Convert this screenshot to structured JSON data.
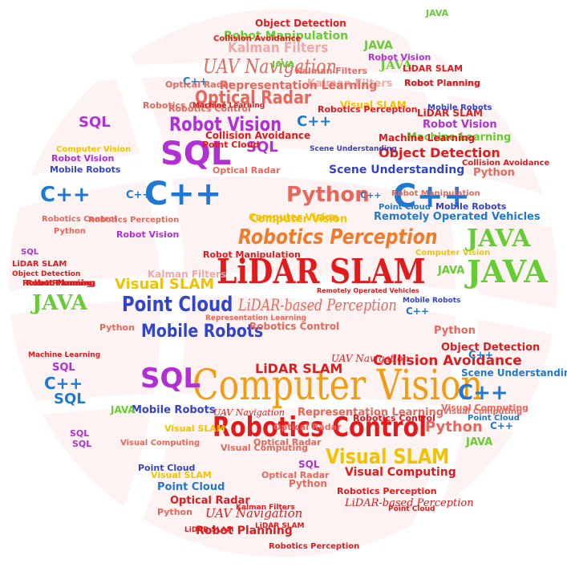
{
  "colors": {
    "background": "#ffffff",
    "globe_tint": "#fbeeee",
    "red": "#e31a1c",
    "orange": "#f39c12",
    "green": "#66cc33",
    "blue": "#1f78d4",
    "purple": "#b22fd6",
    "navy": "#3344cc",
    "pink": "#f4a6a6",
    "salmon": "#e8665a",
    "yellow": "#f2c200",
    "darkred": "#c0302a"
  },
  "words": {
    "w001": "Computer Vision",
    "w002": "LiDAR SLAM",
    "w003": "Robotics Control",
    "w004": "Robotics Perception",
    "w005": "Point Cloud",
    "w006": "JAVA",
    "w007": "JAVA",
    "w008": "C++",
    "w009": "C++",
    "w010": "SQL",
    "w011": "SQL",
    "w012": "Mobile Robots",
    "w013": "Visual SLAM",
    "w014": "Robot Vision",
    "w015": "Optical Radar",
    "w016": "UAV Navigation",
    "w017": "Kalman Filters",
    "w018": "Python",
    "w019": "Scene Understanding",
    "w020": "Object Detection",
    "w021": "Collision Avoidance",
    "w022": "LiDAR-based Perception",
    "w023": "Visual SLAM",
    "w024": "JAVA",
    "w025": "C++",
    "w026": "Python",
    "w027": "Remotely Operated Vehicles",
    "w028": "Machine Learning",
    "w029": "Robot Vision",
    "w030": "LiDAR SLAM",
    "w031": "Mobile Robots",
    "w032": "SQL",
    "w033": "C++",
    "w034": "C++",
    "w035": "C++",
    "w036": "SQL",
    "w037": "SQL",
    "w038": "Object Detection",
    "w039": "Robot Manipulation",
    "w040": "Kalman Filters",
    "w041": "UAV Navigation",
    "w042": "Optical Radar",
    "w043": "LiDAR SLAM",
    "w044": "Visual Computing",
    "w045": "Robotics Perception",
    "w046": "Point Cloud",
    "w047": "Robot Planning",
    "w048": "Representation Learning",
    "w049": "Robotics Control",
    "w050": "Computer Vision",
    "w051": "Mobile Robots",
    "w052": "Robotics Control",
    "w053": "Python",
    "w054": "Point Cloud",
    "w055": "Optical Radar",
    "w056": "JAVA",
    "w057": "Computer Vision",
    "w058": "Scene Understanding",
    "w059": "Collision Avoidance",
    "w060": "Robot Vision",
    "w061": "Mobile Robots",
    "w062": "Robotics Control",
    "w063": "Python",
    "w064": "LiDAR SLAM",
    "w065": "Object Detection",
    "w066": "Machine Learning",
    "w067": "Robot Planning",
    "w068": "Robot Manipulation",
    "w069": "Kalman Filters",
    "w070": "Representation Learning",
    "w071": "Optical Radar",
    "w072": "Remotely Operated Vehicles",
    "w073": "Point Cloud",
    "w074": "Visual SLAM",
    "w075": "LiDAR SLAM",
    "w076": "Robot Planning",
    "w077": "Robotics Perception",
    "w078": "Visual Computing",
    "w079": "Python",
    "w080": "JAVA",
    "w081": "C++",
    "w082": "SQL",
    "w083": "SQL",
    "w084": "C++",
    "w085": "C++",
    "w086": "JAVA",
    "w087": "JAVA",
    "w088": "Python",
    "w089": "Visual Computing",
    "w090": "Visual SLAM",
    "w091": "Point Cloud",
    "w092": "UAV Navigation",
    "w093": "Optical Radar",
    "w094": "Robot Planning",
    "w095": "Robotics Perception",
    "w096": "LiDAR-based Perception",
    "w097": "Mobile Robots",
    "w098": "UAV Navigation",
    "w099": "Kalman Filters",
    "w100": "Robot Manipulation",
    "w101": "Point Cloud",
    "w102": "Visual Computing",
    "w103": "Robotics Control",
    "w104": "Computer Vision",
    "w105": "Robot Vision",
    "w106": "SQL",
    "w107": "SQL",
    "w108": "JAVA",
    "w109": "Python",
    "w110": "C++",
    "w111": "Machine Learning",
    "w112": "Robot Planning",
    "w113": "Kalman Filters",
    "w114": "Object Detection",
    "w115": "Collision Avoidance",
    "w116": "Scene Understanding",
    "w117": "Visual SLAM",
    "w118": "Mobile Robots",
    "w119": "Robotics Control",
    "w120": "Robot Planning",
    "w121": "LiDAR SLAM",
    "w122": "Optical Radar",
    "w123": "Machine Learning",
    "w124": "JAVA",
    "w125": "C++",
    "w126": "Point Cloud",
    "w127": "Computer Vision",
    "w128": "Robot Vision",
    "w129": "Representation Learning",
    "w130": "Visual Computing",
    "w131": "Robotics Perception",
    "w132": "SQL",
    "w133": "Python",
    "w134": "Optical Radar",
    "w135": "Robot Planning",
    "w136": "JAVA",
    "w137": "C++",
    "w138": "LiDAR SLAM",
    "w139": "Collision Avoidance"
  }
}
